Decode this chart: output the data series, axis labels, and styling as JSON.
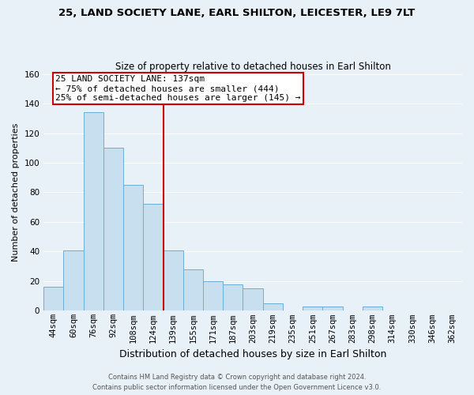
{
  "title": "25, LAND SOCIETY LANE, EARL SHILTON, LEICESTER, LE9 7LT",
  "subtitle": "Size of property relative to detached houses in Earl Shilton",
  "xlabel": "Distribution of detached houses by size in Earl Shilton",
  "ylabel": "Number of detached properties",
  "bin_labels": [
    "44sqm",
    "60sqm",
    "76sqm",
    "92sqm",
    "108sqm",
    "124sqm",
    "139sqm",
    "155sqm",
    "171sqm",
    "187sqm",
    "203sqm",
    "219sqm",
    "235sqm",
    "251sqm",
    "267sqm",
    "283sqm",
    "298sqm",
    "314sqm",
    "330sqm",
    "346sqm",
    "362sqm"
  ],
  "bar_heights": [
    16,
    41,
    134,
    110,
    85,
    72,
    41,
    28,
    20,
    18,
    15,
    5,
    0,
    3,
    3,
    0,
    3,
    0,
    0,
    0,
    0
  ],
  "bar_color": "#c8dff0",
  "bar_edge_color": "#6aaed6",
  "vline_x_idx": 6,
  "vline_color": "#cc0000",
  "annotation_line1": "25 LAND SOCIETY LANE: 137sqm",
  "annotation_line2": "← 75% of detached houses are smaller (444)",
  "annotation_line3": "25% of semi-detached houses are larger (145) →",
  "annotation_box_color": "#ffffff",
  "annotation_box_edge": "#cc0000",
  "ylim": [
    0,
    160
  ],
  "yticks": [
    0,
    20,
    40,
    60,
    80,
    100,
    120,
    140,
    160
  ],
  "footer1": "Contains HM Land Registry data © Crown copyright and database right 2024.",
  "footer2": "Contains public sector information licensed under the Open Government Licence v3.0.",
  "bg_color": "#e8f0f8",
  "grid_color": "#ffffff",
  "title_fontsize": 9.5,
  "subtitle_fontsize": 8.5,
  "ylabel_fontsize": 8,
  "xlabel_fontsize": 9,
  "tick_fontsize": 7.5,
  "annot_fontsize": 8,
  "footer_fontsize": 6
}
